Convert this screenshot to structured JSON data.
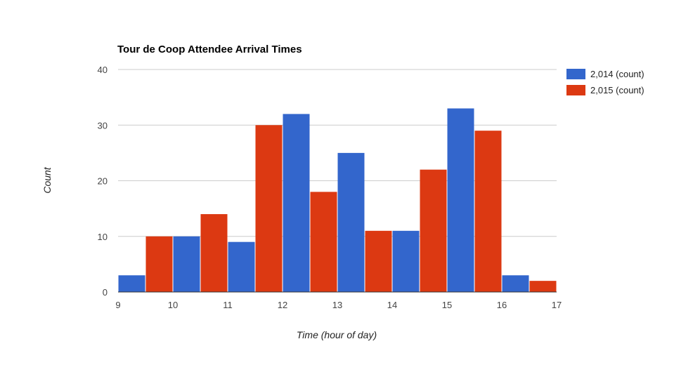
{
  "chart_data": {
    "type": "bar",
    "title": "Tour de Coop Attendee Arrival Times",
    "xlabel": "Time (hour of day)",
    "ylabel": "Count",
    "x_ticks": [
      "9",
      "10",
      "11",
      "12",
      "13",
      "14",
      "15",
      "16",
      "17"
    ],
    "y_ticks": [
      "0",
      "10",
      "20",
      "30",
      "40"
    ],
    "ylim": [
      0,
      40
    ],
    "xlim": [
      9,
      17
    ],
    "bin_width": 0.5,
    "grid": true,
    "legend_position": "right",
    "series": [
      {
        "name": "2,014 (count)",
        "color": "#3366cc",
        "bins": [
          {
            "start": 9.0,
            "value": 3
          },
          {
            "start": 10.0,
            "value": 10
          },
          {
            "start": 11.0,
            "value": 9
          },
          {
            "start": 12.0,
            "value": 32
          },
          {
            "start": 13.0,
            "value": 25
          },
          {
            "start": 14.0,
            "value": 11
          },
          {
            "start": 15.0,
            "value": 33
          },
          {
            "start": 16.0,
            "value": 3
          }
        ]
      },
      {
        "name": "2,015 (count)",
        "color": "#dc3912",
        "bins": [
          {
            "start": 9.5,
            "value": 10
          },
          {
            "start": 10.5,
            "value": 14
          },
          {
            "start": 11.5,
            "value": 30
          },
          {
            "start": 12.5,
            "value": 18
          },
          {
            "start": 13.5,
            "value": 11
          },
          {
            "start": 14.5,
            "value": 22
          },
          {
            "start": 15.5,
            "value": 29
          },
          {
            "start": 16.5,
            "value": 2
          }
        ]
      }
    ]
  }
}
